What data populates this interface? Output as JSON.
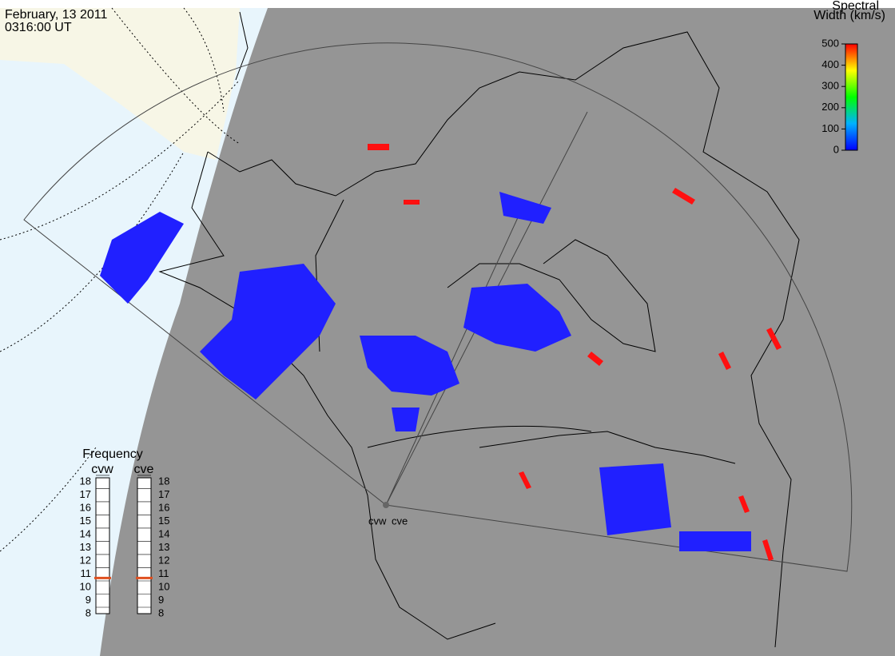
{
  "header": {
    "date": "February, 13 2011",
    "time": "0316:00 UT"
  },
  "colorbar": {
    "title": [
      "Spectral",
      "Width (km/s)"
    ],
    "lim": [
      0,
      500
    ],
    "ticks": [
      0,
      100,
      200,
      300,
      400,
      500
    ],
    "colors": [
      "#0000ff",
      "#00b0ff",
      "#00ff00",
      "#ffff00",
      "#ff0000"
    ]
  },
  "frequency": {
    "title": "Frequency",
    "lim": [
      8,
      18.3
    ],
    "ticks": [
      8,
      9,
      10,
      11,
      12,
      13,
      14,
      15,
      16,
      17,
      18
    ],
    "marker_color": "#e05020",
    "radars": [
      {
        "name": "cvw",
        "value": 10.7
      },
      {
        "name": "cve",
        "value": 10.7
      }
    ]
  },
  "stations": [
    "cvw",
    "cve"
  ]
}
